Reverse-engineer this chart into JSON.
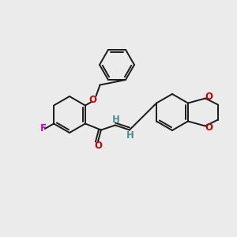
{
  "background_color": "#ebebeb",
  "bond_color": "#1a1a1a",
  "atom_colors": {
    "F": "#cc00cc",
    "O": "#cc0000",
    "H": "#4a9090",
    "C": "#1a1a1a"
  },
  "figsize": [
    3.0,
    3.0
  ],
  "dpi": 100
}
